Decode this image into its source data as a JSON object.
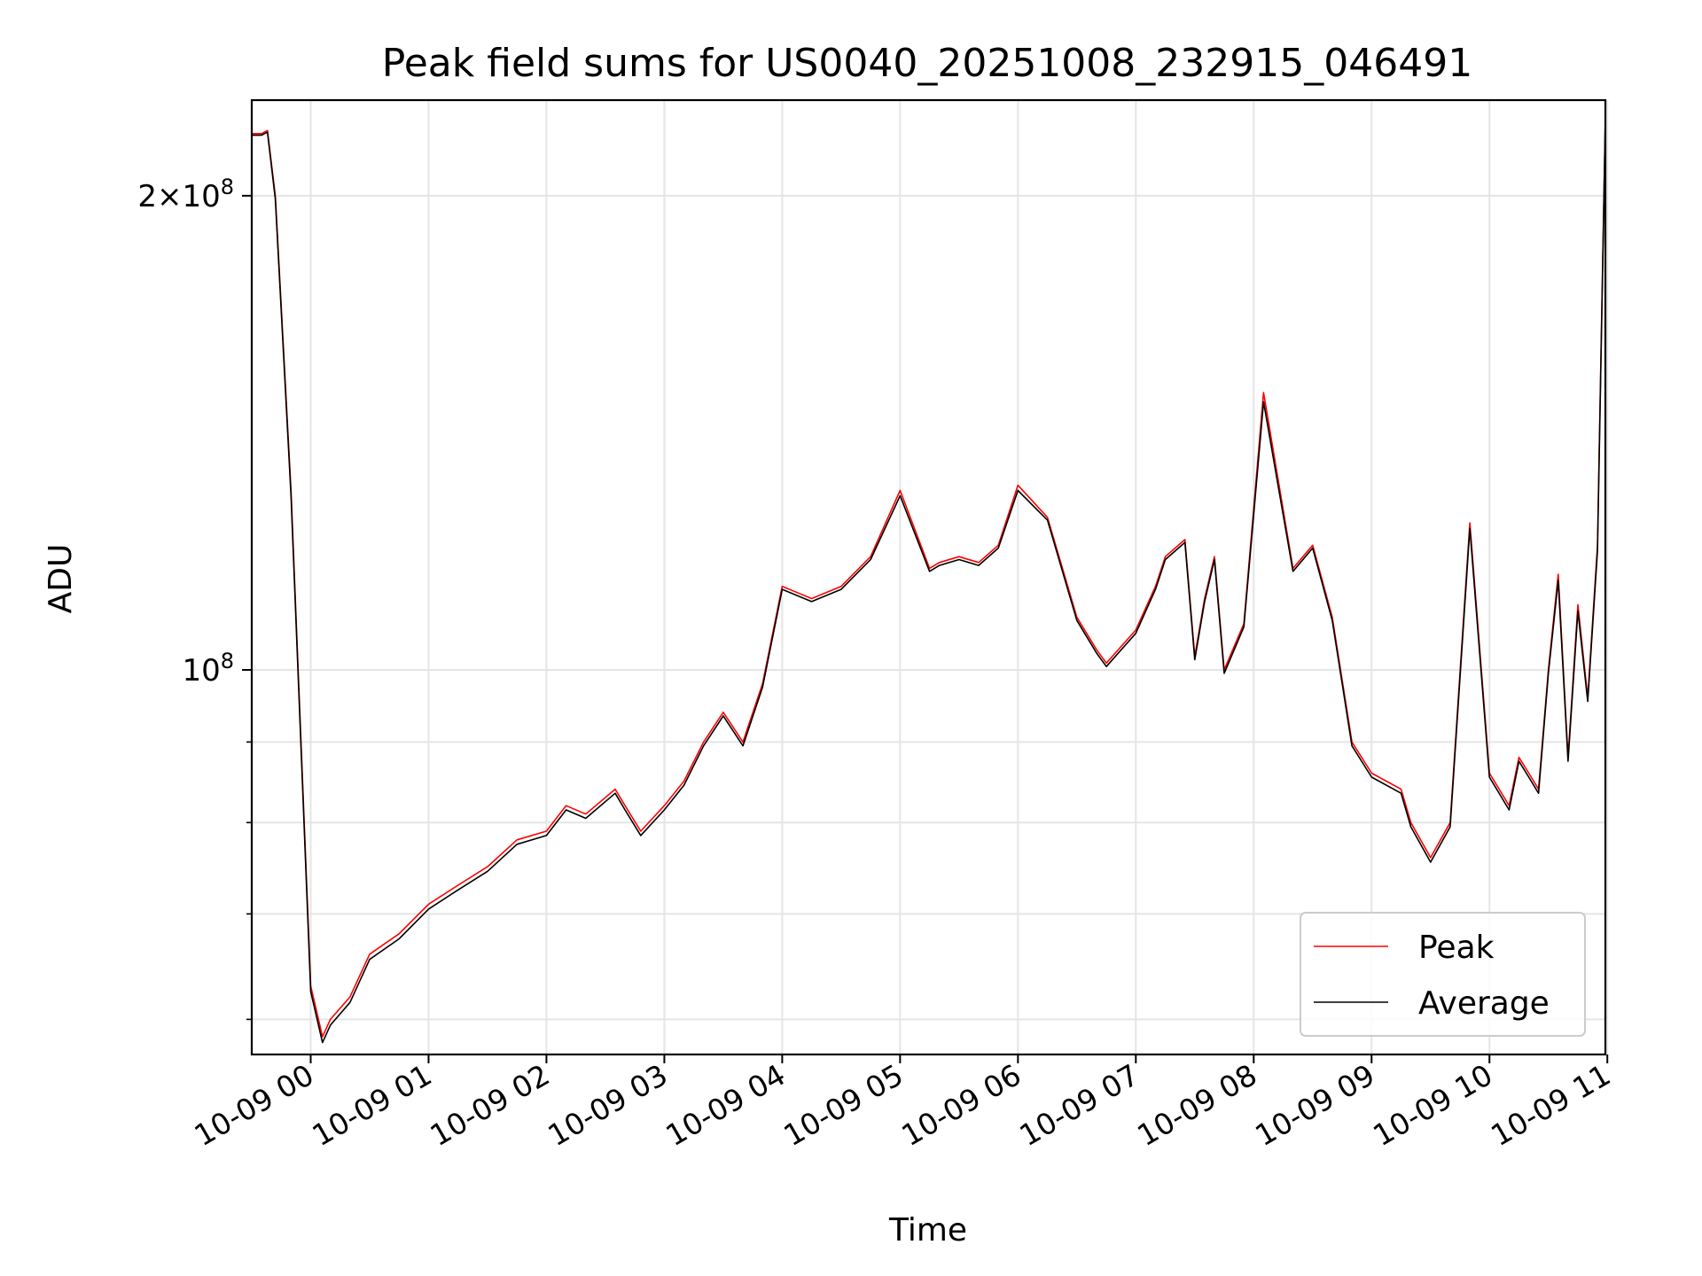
{
  "chart_data": {
    "type": "line",
    "title": "Peak field sums for US0040_20251008_232915_046491",
    "xlabel": "Time",
    "ylabel": "ADU",
    "yscale": "log",
    "ylim": [
      57000000,
      230000000
    ],
    "xlim": [
      "10-08 23:30",
      "10-09 10:59"
    ],
    "grid": true,
    "legend": "lower-right",
    "x_ticks": [
      "10-09 00",
      "10-09 01",
      "10-09 02",
      "10-09 03",
      "10-09 04",
      "10-09 05",
      "10-09 06",
      "10-09 07",
      "10-09 08",
      "10-09 09",
      "10-09 10",
      "10-09 11"
    ],
    "y_major_ticks": [
      {
        "value": 100000000,
        "base": "10",
        "exp": "8",
        "coef": ""
      },
      {
        "value": 200000000,
        "base": "10",
        "exp": "8",
        "coef": "2×"
      }
    ],
    "y_minor_ticks": [
      60000000,
      70000000,
      80000000,
      90000000
    ],
    "series": [
      {
        "name": "Peak",
        "color": "#ff0000",
        "x": [
          "10-08 23:30",
          "10-08 23:35",
          "10-08 23:38",
          "10-08 23:42",
          "10-08 23:50",
          "10-09 00:00",
          "10-09 00:06",
          "10-09 00:10",
          "10-09 00:20",
          "10-09 00:30",
          "10-09 00:45",
          "10-09 01:00",
          "10-09 01:15",
          "10-09 01:30",
          "10-09 01:45",
          "10-09 02:00",
          "10-09 02:10",
          "10-09 02:20",
          "10-09 02:35",
          "10-09 02:40",
          "10-09 02:48",
          "10-09 03:00",
          "10-09 03:10",
          "10-09 03:20",
          "10-09 03:30",
          "10-09 03:40",
          "10-09 03:50",
          "10-09 04:00",
          "10-09 04:15",
          "10-09 04:30",
          "10-09 04:45",
          "10-09 05:00",
          "10-09 05:15",
          "10-09 05:20",
          "10-09 05:30",
          "10-09 05:40",
          "10-09 05:50",
          "10-09 06:00",
          "10-09 06:15",
          "10-09 06:30",
          "10-09 06:40",
          "10-09 06:45",
          "10-09 07:00",
          "10-09 07:10",
          "10-09 07:15",
          "10-09 07:25",
          "10-09 07:30",
          "10-09 07:35",
          "10-09 07:40",
          "10-09 07:45",
          "10-09 07:55",
          "10-09 08:05",
          "10-09 08:20",
          "10-09 08:30",
          "10-09 08:40",
          "10-09 08:50",
          "10-09 09:00",
          "10-09 09:15",
          "10-09 09:20",
          "10-09 09:30",
          "10-09 09:40",
          "10-09 09:50",
          "10-09 10:00",
          "10-09 10:10",
          "10-09 10:15",
          "10-09 10:20",
          "10-09 10:25",
          "10-09 10:30",
          "10-09 10:35",
          "10-09 10:40",
          "10-09 10:45",
          "10-09 10:50",
          "10-09 10:55",
          "10-09 10:59"
        ],
        "values": [
          219000000,
          219000000,
          220000000,
          200000000,
          130000000,
          63000000,
          58500000,
          60000000,
          62000000,
          66000000,
          68000000,
          71000000,
          73000000,
          75000000,
          78000000,
          79000000,
          82000000,
          81000000,
          84000000,
          82000000,
          79000000,
          82000000,
          85000000,
          90000000,
          94000000,
          90000000,
          98000000,
          113000000,
          111000000,
          113000000,
          118000000,
          130000000,
          116000000,
          117000000,
          118000000,
          117000000,
          120000000,
          131000000,
          125000000,
          108000000,
          103000000,
          101000000,
          106000000,
          113000000,
          118000000,
          121000000,
          102000000,
          111000000,
          118000000,
          100000000,
          107000000,
          150000000,
          116000000,
          120000000,
          108000000,
          90000000,
          86000000,
          84000000,
          80000000,
          76000000,
          80000000,
          124000000,
          86000000,
          82000000,
          88000000,
          86000000,
          84000000,
          100000000,
          115000000,
          88000000,
          110000000,
          96000000,
          120000000,
          225000000
        ]
      },
      {
        "name": "Average",
        "color": "#000000",
        "x": [
          "10-08 23:30",
          "10-08 23:35",
          "10-08 23:38",
          "10-08 23:42",
          "10-08 23:50",
          "10-09 00:00",
          "10-09 00:06",
          "10-09 00:10",
          "10-09 00:20",
          "10-09 00:30",
          "10-09 00:45",
          "10-09 01:00",
          "10-09 01:15",
          "10-09 01:30",
          "10-09 01:45",
          "10-09 02:00",
          "10-09 02:10",
          "10-09 02:20",
          "10-09 02:35",
          "10-09 02:40",
          "10-09 02:48",
          "10-09 03:00",
          "10-09 03:10",
          "10-09 03:20",
          "10-09 03:30",
          "10-09 03:40",
          "10-09 03:50",
          "10-09 04:00",
          "10-09 04:15",
          "10-09 04:30",
          "10-09 04:45",
          "10-09 05:00",
          "10-09 05:15",
          "10-09 05:20",
          "10-09 05:30",
          "10-09 05:40",
          "10-09 05:50",
          "10-09 06:00",
          "10-09 06:15",
          "10-09 06:30",
          "10-09 06:40",
          "10-09 06:45",
          "10-09 07:00",
          "10-09 07:10",
          "10-09 07:15",
          "10-09 07:25",
          "10-09 07:30",
          "10-09 07:35",
          "10-09 07:40",
          "10-09 07:45",
          "10-09 07:55",
          "10-09 08:05",
          "10-09 08:20",
          "10-09 08:30",
          "10-09 08:40",
          "10-09 08:50",
          "10-09 09:00",
          "10-09 09:15",
          "10-09 09:20",
          "10-09 09:30",
          "10-09 09:40",
          "10-09 09:50",
          "10-09 10:00",
          "10-09 10:10",
          "10-09 10:15",
          "10-09 10:20",
          "10-09 10:25",
          "10-09 10:30",
          "10-09 10:35",
          "10-09 10:40",
          "10-09 10:45",
          "10-09 10:50",
          "10-09 10:55",
          "10-09 10:59"
        ],
        "values": [
          218500000,
          218500000,
          219500000,
          199000000,
          129000000,
          62500000,
          58000000,
          59500000,
          61500000,
          65500000,
          67500000,
          70500000,
          72500000,
          74500000,
          77500000,
          78500000,
          81500000,
          80500000,
          83500000,
          81500000,
          78500000,
          81500000,
          84500000,
          89500000,
          93500000,
          89500000,
          97500000,
          112500000,
          110500000,
          112500000,
          117500000,
          129000000,
          115500000,
          116500000,
          117500000,
          116500000,
          119500000,
          130000000,
          124500000,
          107500000,
          102500000,
          100500000,
          105500000,
          112500000,
          117500000,
          120500000,
          101500000,
          110500000,
          117500000,
          99500000,
          106500000,
          148000000,
          115500000,
          119500000,
          107500000,
          89500000,
          85500000,
          83500000,
          79500000,
          75500000,
          79500000,
          123000000,
          85500000,
          81500000,
          87500000,
          85500000,
          83500000,
          99500000,
          114000000,
          87500000,
          109000000,
          95500000,
          119000000,
          224000000
        ]
      }
    ]
  }
}
